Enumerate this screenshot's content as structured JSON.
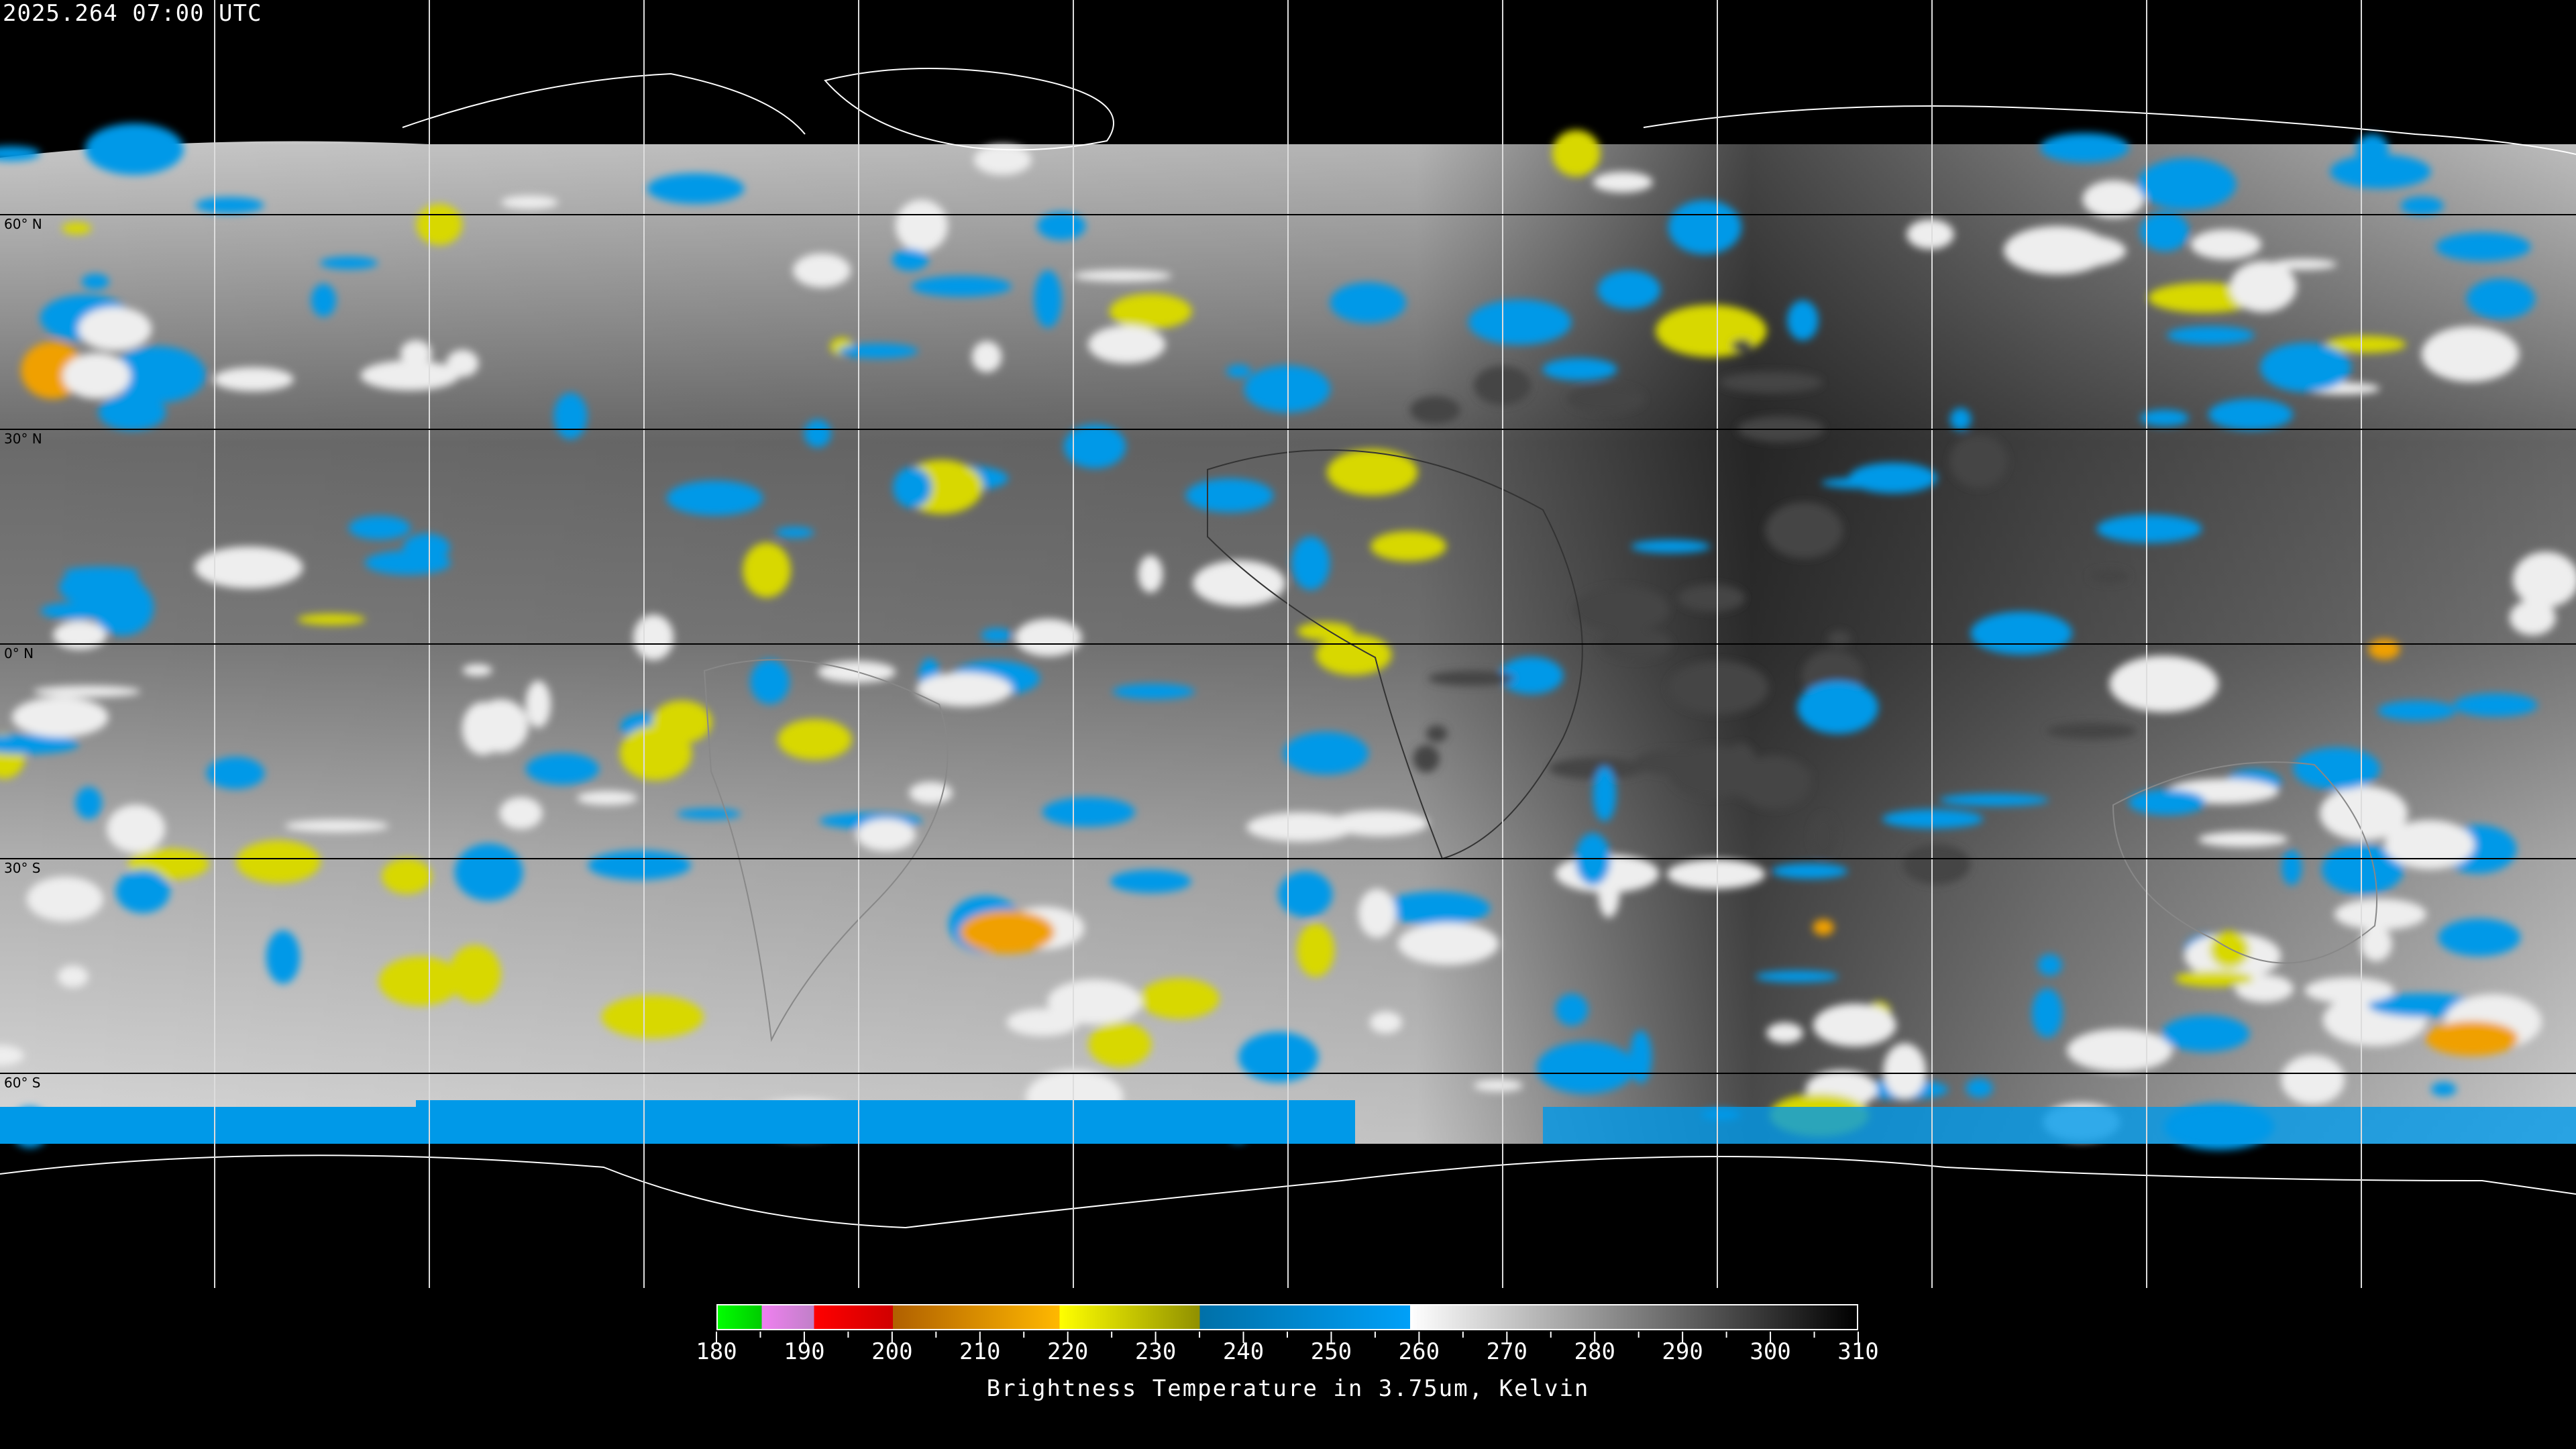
{
  "header": {
    "timestamp": "2025.264 07:00 UTC"
  },
  "map": {
    "projection": "equirectangular",
    "latitude_labels": [
      "60° N",
      "30° N",
      "0° N",
      "30° S",
      "60° S"
    ],
    "gridline_spacing_degrees": 30
  },
  "colorbar": {
    "label": "Brightness Temperature in 3.75um, Kelvin",
    "min": 180,
    "max": 310,
    "tick_labels": [
      "180",
      "190",
      "200",
      "210",
      "220",
      "230",
      "240",
      "250",
      "260",
      "270",
      "280",
      "290",
      "300",
      "310"
    ],
    "minor_tick_step": 5,
    "segments": [
      {
        "from": 180,
        "to": 185,
        "colors": [
          "#00ff00",
          "#00cc00"
        ]
      },
      {
        "from": 185,
        "to": 191,
        "colors": [
          "#f080f0",
          "#c080c8"
        ]
      },
      {
        "from": 191,
        "to": 200,
        "colors": [
          "#ff0000",
          "#d00000"
        ]
      },
      {
        "from": 200,
        "to": 219,
        "colors": [
          "#b06000",
          "#ffb800"
        ]
      },
      {
        "from": 219,
        "to": 235,
        "colors": [
          "#ffff00",
          "#909000"
        ]
      },
      {
        "from": 235,
        "to": 259,
        "colors": [
          "#0070a8",
          "#00a0f8"
        ]
      },
      {
        "from": 259,
        "to": 310,
        "colors": [
          "#ffffff",
          "#000000"
        ]
      }
    ]
  }
}
